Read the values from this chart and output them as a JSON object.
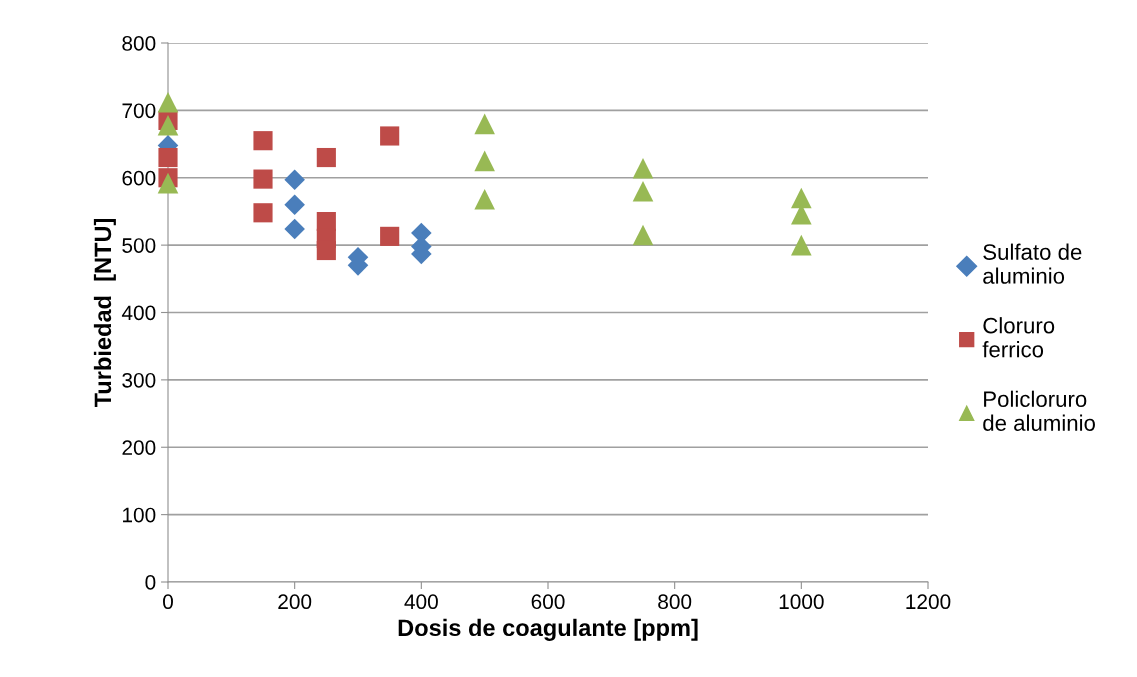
{
  "chart_data": {
    "type": "scatter",
    "xlabel": "Dosis de coagulante [ppm]",
    "ylabel": "Turbiedad  [NTU]",
    "xlim": [
      0,
      1200
    ],
    "xticks": [
      0,
      200,
      400,
      600,
      800,
      1000,
      1200
    ],
    "ylim": [
      0,
      800
    ],
    "yticks": [
      0,
      100,
      200,
      300,
      400,
      500,
      600,
      700,
      800
    ],
    "grid": "y",
    "legend": "right",
    "series": [
      {
        "name": "Sulfato de\naluminio",
        "color": "#4a7ebb",
        "marker": "diamond",
        "x": [
          0,
          200,
          200,
          200,
          300,
          300,
          400,
          400,
          400
        ],
        "values": [
          648,
          597,
          560,
          524,
          482,
          470,
          518,
          498,
          487
        ]
      },
      {
        "name": "Cloruro\nferrico",
        "color": "#be4b48",
        "marker": "square",
        "x": [
          0,
          0,
          0,
          150,
          150,
          150,
          250,
          250,
          250,
          250,
          350,
          350
        ],
        "values": [
          685,
          630,
          600,
          655,
          598,
          548,
          630,
          535,
          510,
          492,
          662,
          513
        ]
      },
      {
        "name": "Policloruro\nde aluminio",
        "color": "#98b954",
        "marker": "triangle",
        "x": [
          0,
          0,
          0,
          500,
          500,
          500,
          750,
          750,
          750,
          1000,
          1000,
          1000
        ],
        "values": [
          712,
          678,
          592,
          680,
          625,
          568,
          614,
          580,
          515,
          570,
          546,
          500
        ]
      }
    ]
  }
}
